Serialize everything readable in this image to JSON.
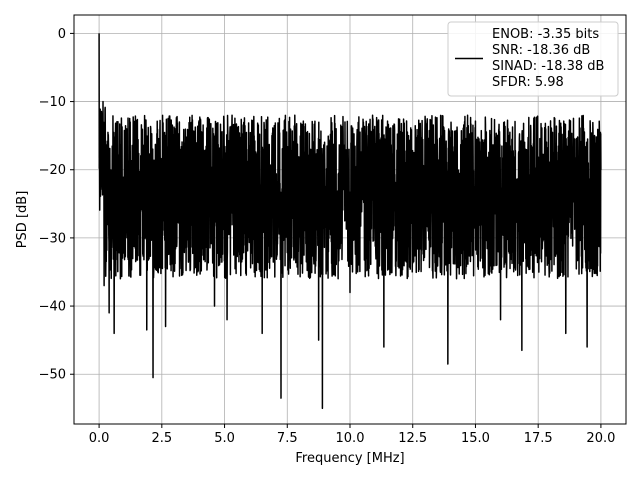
{
  "chart_data": {
    "type": "line",
    "title": "",
    "xlabel": "Frequency [MHz]",
    "ylabel": "PSD [dB]",
    "xlim": [
      -1.0,
      21.0
    ],
    "ylim": [
      -57.3,
      2.7
    ],
    "x_ticks": [
      0.0,
      2.5,
      5.0,
      7.5,
      10.0,
      12.5,
      15.0,
      17.5,
      20.0
    ],
    "x_tick_labels": [
      "0.0",
      "2.5",
      "5.0",
      "7.5",
      "10.0",
      "12.5",
      "15.0",
      "17.5",
      "20.0"
    ],
    "y_ticks": [
      0,
      -10,
      -20,
      -30,
      -40,
      -50
    ],
    "y_tick_labels": [
      "0",
      "−10",
      "−20",
      "−30",
      "−40",
      "−50"
    ],
    "grid": true,
    "legend_position": "top-right",
    "legend_lines": [
      "ENOB: -3.35 bits",
      "SNR: -18.36 dB",
      "SINAD: -18.38 dB",
      "SFDR: 5.98"
    ],
    "series": [
      {
        "color": "#000000",
        "x": [
          0.0,
          0.05,
          0.1,
          0.15,
          0.2,
          0.25,
          0.3,
          0.4,
          0.45,
          0.6,
          0.85,
          1.1,
          1.9,
          2.15,
          2.65,
          3.2,
          4.6,
          5.1,
          5.3,
          6.5,
          7.05,
          7.25,
          7.8,
          8.3,
          8.75,
          8.9,
          9.8,
          10.0,
          10.9,
          11.35,
          13.0,
          13.9,
          14.2,
          15.3,
          16.0,
          16.85,
          17.0,
          17.8,
          18.6,
          19.0,
          19.45,
          19.9,
          20.0
        ],
        "y": [
          0.0,
          -18.5,
          -13.5,
          -22.0,
          -37.0,
          -16.0,
          -29.0,
          -41.0,
          -24.0,
          -44.0,
          -36.0,
          -14.0,
          -43.5,
          -50.5,
          -43.0,
          -13.0,
          -40.0,
          -42.0,
          -12.0,
          -44.0,
          -24.0,
          -53.5,
          -12.0,
          -17.0,
          -45.0,
          -55.0,
          -13.0,
          -38.0,
          -12.0,
          -46.0,
          -13.0,
          -48.5,
          -24.0,
          -16.0,
          -42.0,
          -46.5,
          -19.0,
          -14.0,
          -44.0,
          -19.0,
          -46.0,
          -16.0,
          -20.0
        ]
      }
    ]
  }
}
